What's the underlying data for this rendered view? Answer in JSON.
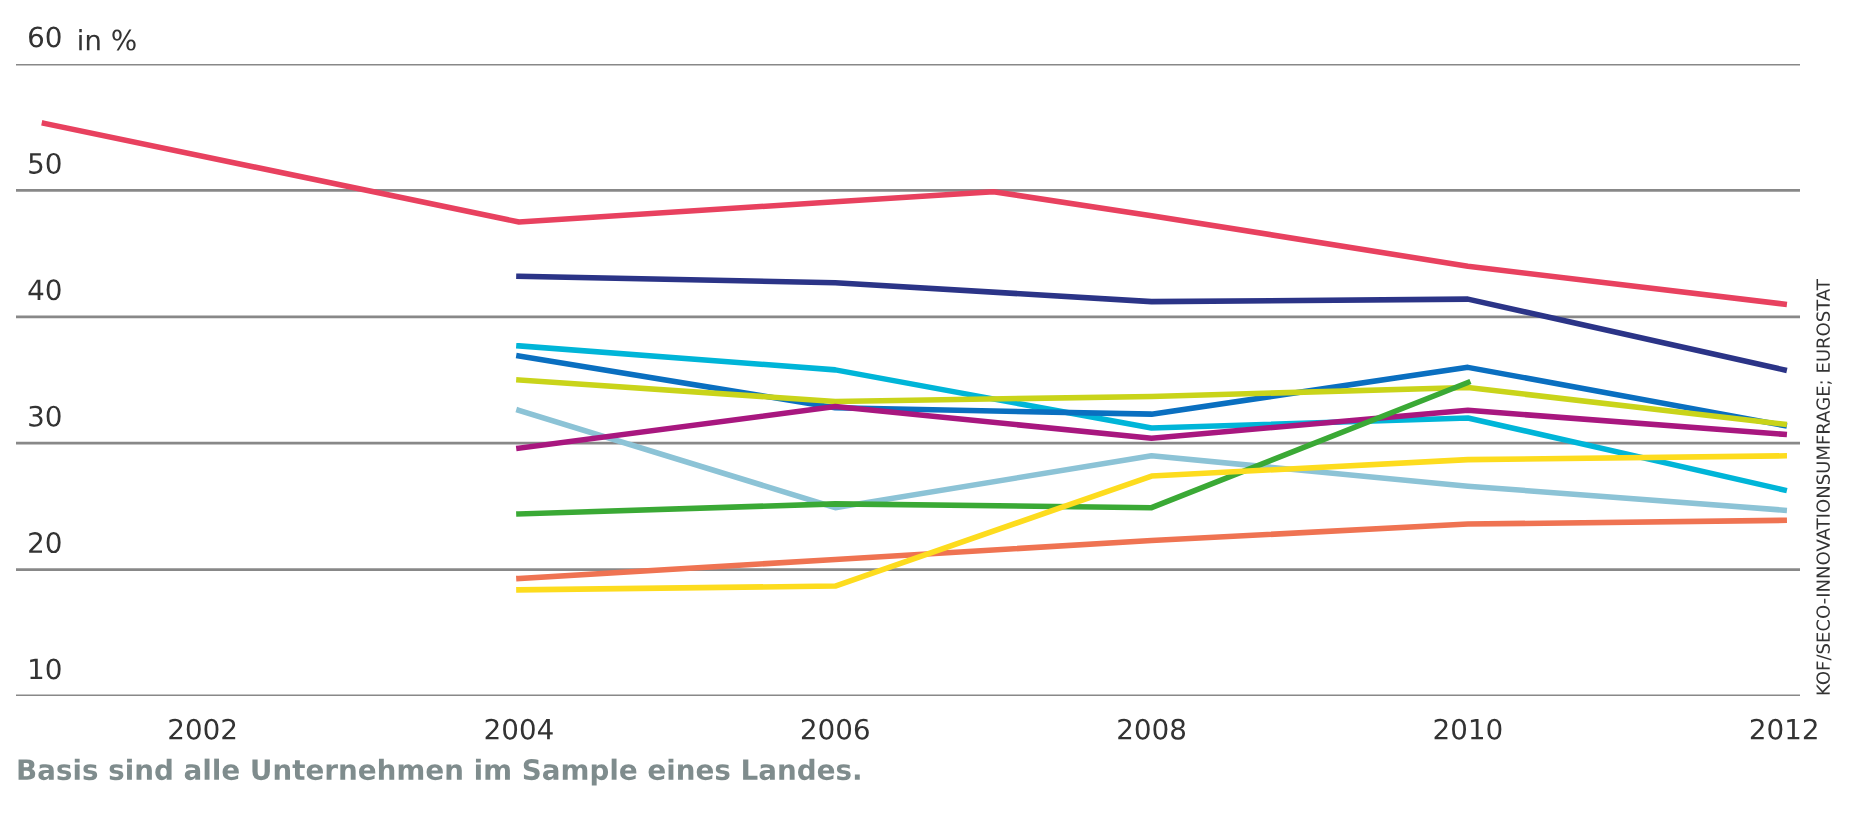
{
  "chart_data": {
    "type": "line",
    "ylabel": "in %",
    "xlim": [
      2000.82,
      2012.1
    ],
    "xticks": [
      2002,
      2004,
      2006,
      2008,
      2010,
      2012
    ],
    "ylim": [
      10,
      60
    ],
    "yticks": [
      10,
      20,
      30,
      40,
      50,
      60
    ],
    "grid": "y",
    "legend": false,
    "line_style": "solid",
    "marker": "none",
    "annotations": [
      "Basis sind alle Unternehmen im Sample eines Landes.",
      "KOF/SECO-INNOVATIONSUMFRAGE; EUROSTAT"
    ],
    "series": [
      {
        "color": "#e8415f",
        "x": [
          2001,
          2004,
          2006,
          2007,
          2008,
          2010,
          2012
        ],
        "values": [
          55.3,
          47.5,
          49.1,
          49.9,
          48.0,
          44.0,
          41.0
        ]
      },
      {
        "color": "#2b3487",
        "x": [
          2004,
          2006,
          2008,
          2010,
          2012
        ],
        "values": [
          43.2,
          42.7,
          41.2,
          41.4,
          35.8
        ]
      },
      {
        "color": "#00b5d8",
        "x": [
          2004,
          2006,
          2008,
          2010,
          2012
        ],
        "values": [
          37.7,
          35.8,
          31.2,
          32.0,
          26.3
        ]
      },
      {
        "color": "#0a6fc0",
        "x": [
          2004,
          2006,
          2008,
          2010,
          2012
        ],
        "values": [
          36.9,
          32.8,
          32.3,
          36.0,
          31.4
        ]
      },
      {
        "color": "#c9d41a",
        "x": [
          2004,
          2006,
          2008,
          2010,
          2012
        ],
        "values": [
          35.0,
          33.3,
          33.7,
          34.4,
          31.5
        ]
      },
      {
        "color": "#8cc3d6",
        "x": [
          2004,
          2006,
          2008,
          2010,
          2012
        ],
        "values": [
          32.6,
          24.9,
          29.0,
          26.6,
          24.7
        ]
      },
      {
        "color": "#a8177f",
        "x": [
          2004,
          2006,
          2008,
          2010,
          2012
        ],
        "values": [
          29.6,
          32.9,
          30.4,
          32.6,
          30.7
        ]
      },
      {
        "color": "#3aa935",
        "x": [
          2004,
          2006,
          2008,
          2010
        ],
        "values": [
          24.4,
          25.2,
          24.9,
          34.8
        ]
      },
      {
        "color": "#ef7352",
        "x": [
          2004,
          2006,
          2008,
          2010,
          2012
        ],
        "values": [
          19.3,
          20.8,
          22.3,
          23.6,
          23.9
        ]
      },
      {
        "color": "#fddc1e",
        "x": [
          2004,
          2006,
          2008,
          2010,
          2012
        ],
        "values": [
          18.4,
          18.7,
          27.4,
          28.7,
          29.0
        ]
      }
    ]
  }
}
